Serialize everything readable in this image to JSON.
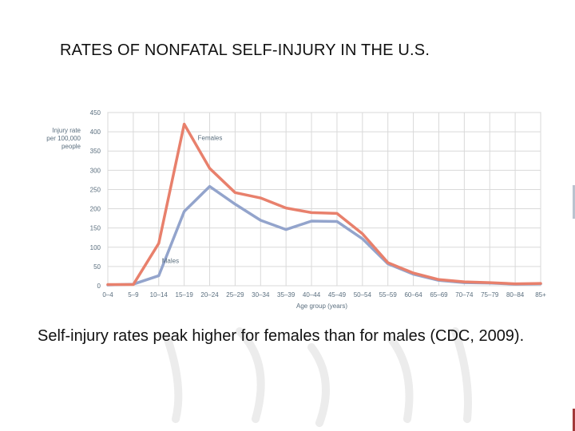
{
  "slide": {
    "title": "RATES OF NONFATAL SELF-INJURY IN THE U.S.",
    "caption": "Self-injury rates peak higher for females than for males (CDC, 2009)."
  },
  "chart_data": {
    "type": "line",
    "title": "",
    "ylabel_lines": [
      "Injury rate",
      "per 100,000",
      "people"
    ],
    "xlabel": "Age group (years)",
    "categories": [
      "0–4",
      "5–9",
      "10–14",
      "15–19",
      "20–24",
      "25–29",
      "30–34",
      "35–39",
      "40–44",
      "45–49",
      "50–54",
      "55–59",
      "60–64",
      "65–69",
      "70–74",
      "75–79",
      "80–84",
      "85+"
    ],
    "ylim": [
      0,
      450
    ],
    "yticks": [
      0,
      50,
      100,
      150,
      200,
      250,
      300,
      350,
      400,
      450
    ],
    "grid": true,
    "series": [
      {
        "name": "Females",
        "color": "#e8806c",
        "values": [
          3,
          3,
          110,
          420,
          305,
          242,
          228,
          202,
          190,
          188,
          135,
          60,
          33,
          16,
          10,
          8,
          5,
          6
        ]
      },
      {
        "name": "Males",
        "color": "#93a4cc",
        "values": [
          2,
          4,
          26,
          193,
          258,
          212,
          170,
          146,
          168,
          167,
          122,
          57,
          30,
          14,
          8,
          7,
          4,
          5
        ]
      }
    ]
  }
}
